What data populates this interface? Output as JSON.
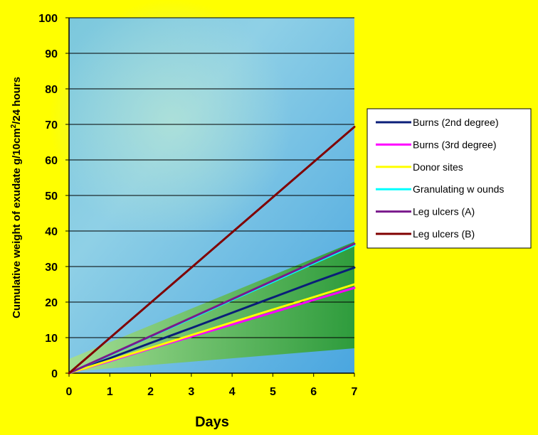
{
  "chart_data": {
    "type": "line",
    "xlabel": "Days",
    "ylabel_parts": [
      "Cumulative weight of exudate g/10cm",
      "2",
      "/24 hours"
    ],
    "x": [
      0,
      1,
      2,
      3,
      4,
      5,
      6,
      7
    ],
    "xlim": [
      0,
      7
    ],
    "ylim": [
      0,
      100
    ],
    "yticks": [
      0,
      10,
      20,
      30,
      40,
      50,
      60,
      70,
      80,
      90,
      100
    ],
    "grid": true,
    "legend_position": "right",
    "series": [
      {
        "name": "Burns (2nd degree)",
        "color": "#0a1e78",
        "values": [
          0,
          4.2,
          8.5,
          12.7,
          17.0,
          21.3,
          25.6,
          29.7
        ]
      },
      {
        "name": "Burns (3rd degree)",
        "color": "#ff00ff",
        "values": [
          0,
          3.4,
          6.9,
          10.3,
          13.7,
          17.1,
          20.6,
          24.0
        ]
      },
      {
        "name": "Donor sites",
        "color": "#ffff00",
        "values": [
          0,
          3.6,
          7.1,
          10.7,
          14.3,
          17.9,
          21.4,
          25.0
        ]
      },
      {
        "name": "Granulating w ounds",
        "color": "#00ffff",
        "values": [
          0,
          5.1,
          10.3,
          15.4,
          20.6,
          25.7,
          30.9,
          36.0
        ]
      },
      {
        "name": "Leg ulcers (A)",
        "color": "#7a1a8c",
        "values": [
          0,
          5.2,
          10.4,
          15.6,
          20.8,
          26.0,
          31.2,
          36.4
        ]
      },
      {
        "name": "Leg ulcers (B)",
        "color": "#800000",
        "values": [
          0,
          9.9,
          19.8,
          29.7,
          39.6,
          49.5,
          59.4,
          69.3
        ]
      }
    ]
  }
}
